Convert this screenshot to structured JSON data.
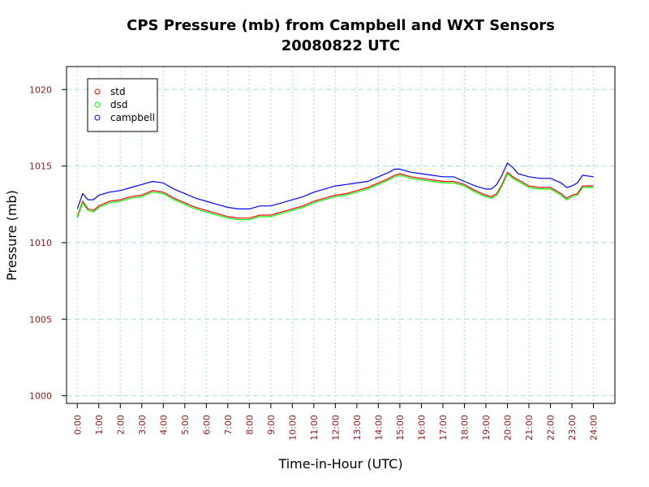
{
  "chart_data": {
    "type": "line",
    "title": "CPS Pressure (mb) from Campbell and WXT Sensors",
    "subtitle": "20080822  UTC",
    "xlabel": "Time-in-Hour (UTC)",
    "ylabel": "Pressure (mb)",
    "xlim": [
      -0.5,
      25
    ],
    "ylim": [
      999.5,
      1021.5
    ],
    "x_ticks": [
      0,
      1,
      2,
      3,
      4,
      5,
      6,
      7,
      8,
      9,
      10,
      11,
      12,
      13,
      14,
      15,
      16,
      17,
      18,
      19,
      20,
      21,
      22,
      23,
      24
    ],
    "x_tick_labels": [
      "0:00",
      "1:00",
      "2:00",
      "3:00",
      "4:00",
      "5:00",
      "6:00",
      "7:00",
      "8:00",
      "9:00",
      "10:00",
      "11:00",
      "12:00",
      "13:00",
      "14:00",
      "15:00",
      "16:00",
      "17:00",
      "18:00",
      "19:00",
      "20:00",
      "21:00",
      "22:00",
      "23:00",
      "24:00"
    ],
    "y_ticks": [
      1000,
      1005,
      1010,
      1015,
      1020
    ],
    "y_tick_labels": [
      "1000",
      "1005",
      "1010",
      "1015",
      "1020"
    ],
    "grid": true,
    "legend_position": "top-left",
    "x": [
      0,
      0.25,
      0.5,
      0.75,
      1,
      1.5,
      2,
      2.5,
      3,
      3.5,
      4,
      4.5,
      5,
      5.5,
      6,
      6.5,
      7,
      7.5,
      8,
      8.5,
      9,
      9.5,
      10,
      10.5,
      11,
      11.5,
      12,
      12.5,
      13,
      13.5,
      14,
      14.5,
      14.75,
      15,
      15.5,
      16,
      16.5,
      17,
      17.5,
      18,
      18.5,
      19,
      19.25,
      19.5,
      19.75,
      20,
      20.25,
      20.5,
      21,
      21.5,
      22,
      22.5,
      22.75,
      23,
      23.25,
      23.5,
      24
    ],
    "series": [
      {
        "name": "std",
        "color": "#ff0000",
        "values": [
          1011.7,
          1012.7,
          1012.2,
          1012.1,
          1012.4,
          1012.7,
          1012.8,
          1013.0,
          1013.1,
          1013.4,
          1013.3,
          1012.9,
          1012.6,
          1012.3,
          1012.1,
          1011.9,
          1011.7,
          1011.6,
          1011.6,
          1011.8,
          1011.8,
          1012.0,
          1012.2,
          1012.4,
          1012.7,
          1012.9,
          1013.1,
          1013.2,
          1013.4,
          1013.6,
          1013.9,
          1014.2,
          1014.4,
          1014.5,
          1014.3,
          1014.2,
          1014.1,
          1014.0,
          1014.0,
          1013.8,
          1013.4,
          1013.1,
          1013.0,
          1013.2,
          1013.8,
          1014.6,
          1014.3,
          1014.1,
          1013.7,
          1013.6,
          1013.6,
          1013.2,
          1012.9,
          1013.1,
          1013.2,
          1013.7,
          1013.7
        ]
      },
      {
        "name": "dsd",
        "color": "#00ff00",
        "values": [
          1011.6,
          1012.6,
          1012.1,
          1012.0,
          1012.3,
          1012.6,
          1012.7,
          1012.9,
          1013.0,
          1013.3,
          1013.2,
          1012.8,
          1012.5,
          1012.2,
          1012.0,
          1011.8,
          1011.6,
          1011.5,
          1011.5,
          1011.7,
          1011.7,
          1011.9,
          1012.1,
          1012.3,
          1012.6,
          1012.8,
          1013.0,
          1013.1,
          1013.3,
          1013.5,
          1013.8,
          1014.1,
          1014.3,
          1014.4,
          1014.2,
          1014.1,
          1014.0,
          1013.9,
          1013.9,
          1013.7,
          1013.3,
          1013.0,
          1012.9,
          1013.1,
          1013.7,
          1014.5,
          1014.2,
          1014.0,
          1013.6,
          1013.5,
          1013.5,
          1013.1,
          1012.8,
          1013.0,
          1013.1,
          1013.6,
          1013.6
        ]
      },
      {
        "name": "campbell",
        "color": "#0000ff",
        "values": [
          1012.2,
          1013.2,
          1012.8,
          1012.8,
          1013.1,
          1013.3,
          1013.4,
          1013.6,
          1013.8,
          1014.0,
          1013.9,
          1013.5,
          1013.2,
          1012.9,
          1012.7,
          1012.5,
          1012.3,
          1012.2,
          1012.2,
          1012.4,
          1012.4,
          1012.6,
          1012.8,
          1013.0,
          1013.3,
          1013.5,
          1013.7,
          1013.8,
          1013.9,
          1014.0,
          1014.3,
          1014.6,
          1014.8,
          1014.8,
          1014.6,
          1014.5,
          1014.4,
          1014.3,
          1014.3,
          1014.0,
          1013.7,
          1013.5,
          1013.5,
          1013.8,
          1014.4,
          1015.2,
          1014.9,
          1014.5,
          1014.3,
          1014.2,
          1014.2,
          1013.9,
          1013.6,
          1013.7,
          1013.9,
          1014.4,
          1014.3
        ]
      }
    ]
  }
}
